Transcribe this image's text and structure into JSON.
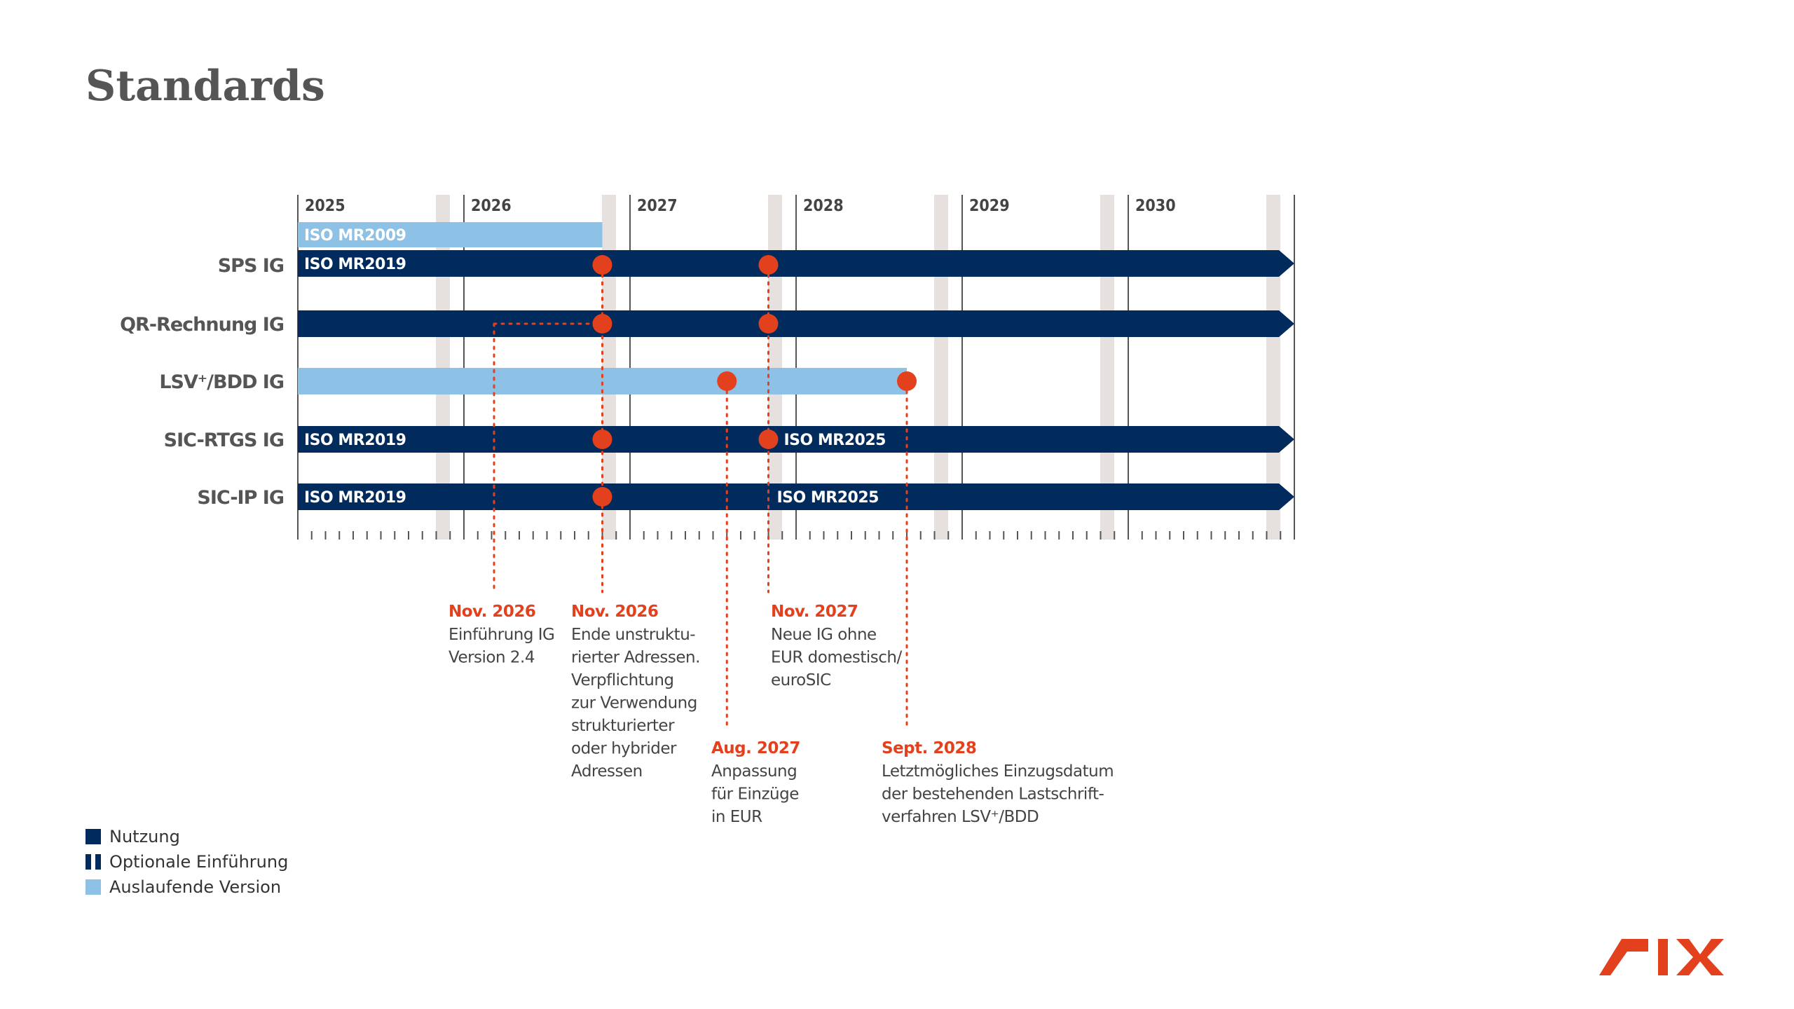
{
  "title": "Standards",
  "colors": {
    "usage": "#002B5C",
    "phaseout": "#8DC1E5",
    "marker": "#E3401D",
    "grid": "#555555",
    "band": "#E6E1DE",
    "label_text": "#555555",
    "brand": "#E3401D"
  },
  "timeline": {
    "start": "2025-01",
    "end": "2031-01",
    "years": [
      "2025",
      "2026",
      "2027",
      "2028",
      "2029",
      "2030"
    ]
  },
  "rows": [
    {
      "label": "SPS IG",
      "bars": [
        {
          "start": "2025-01",
          "end": "2026-11",
          "type": "phaseout",
          "lane": "upper",
          "text": "ISO MR2009",
          "arrow": false
        },
        {
          "start": "2025-01",
          "end": "2031-01",
          "type": "usage",
          "lane": "lower",
          "text": "ISO MR2019",
          "arrow": true
        }
      ],
      "markers": [
        "2026-11",
        "2027-11"
      ]
    },
    {
      "label": "QR-Rechnung IG",
      "bars": [
        {
          "start": "2025-01",
          "end": "2031-01",
          "type": "usage",
          "lane": "full",
          "text": "",
          "arrow": true
        }
      ],
      "markers": [
        "2026-11",
        "2027-11"
      ]
    },
    {
      "label": "LSV⁺/BDD IG",
      "bars": [
        {
          "start": "2025-01",
          "end": "2028-09",
          "type": "phaseout",
          "lane": "full",
          "text": "",
          "arrow": false
        }
      ],
      "markers": [
        "2027-08",
        "2028-09"
      ]
    },
    {
      "label": "SIC-RTGS IG",
      "bars": [
        {
          "start": "2025-01",
          "end": "2031-01",
          "type": "usage",
          "lane": "full",
          "text": "ISO MR2019",
          "arrow": true
        }
      ],
      "extra_text": {
        "at": "2027-11",
        "text": "ISO MR2025"
      },
      "markers": [
        "2026-11",
        "2027-11"
      ]
    },
    {
      "label": "SIC-IP IG",
      "bars": [
        {
          "start": "2025-01",
          "end": "2031-01",
          "type": "usage",
          "lane": "full",
          "text": "ISO MR2019",
          "arrow": true
        }
      ],
      "extra_text": {
        "at": "2027-11",
        "text": "ISO MR2025"
      },
      "markers": [
        "2026-11"
      ]
    }
  ],
  "annotations": [
    {
      "date": "2026-11",
      "title": "Nov. 2026",
      "lines": [
        "Einführung IG",
        "Version 2.4"
      ]
    },
    {
      "date": "2026-11",
      "title": "Nov. 2026",
      "lines": [
        "Ende unstruktu-",
        "rierter Adressen.",
        "Verpflichtung",
        "zur Verwendung",
        "strukturierter",
        "oder hybrider",
        "Adressen"
      ]
    },
    {
      "date": "2027-11",
      "title": "Nov. 2027",
      "lines": [
        "Neue IG ohne",
        "EUR domestisch/",
        "euroSIC"
      ]
    },
    {
      "date": "2027-08",
      "title": "Aug. 2027",
      "lines": [
        "Anpassung",
        "für Einzüge",
        "in EUR"
      ]
    },
    {
      "date": "2028-09",
      "title": "Sept. 2028",
      "lines": [
        "Letztmögliches Einzugsdatum",
        "der bestehenden Lastschrift-",
        "verfahren LSV⁺/BDD"
      ]
    }
  ],
  "legend": [
    {
      "label": "Nutzung",
      "type": "usage"
    },
    {
      "label": "Optionale Einführung",
      "type": "optional"
    },
    {
      "label": "Auslaufende Version",
      "type": "phaseout"
    }
  ],
  "logo": {
    "text": "SIX",
    "icon": "six-logo-icon"
  }
}
